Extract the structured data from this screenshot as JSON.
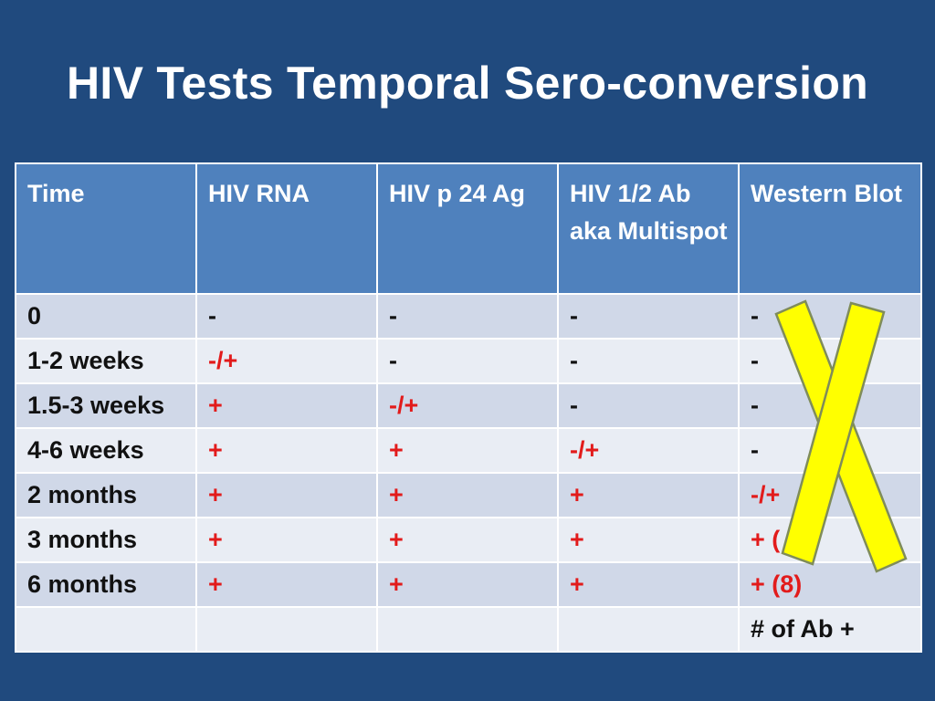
{
  "slide": {
    "title": "HIV Tests Temporal Sero-conversion"
  },
  "table": {
    "headers": [
      "Time",
      "HIV RNA",
      "HIV p 24 Ag",
      "HIV 1/2 Ab aka Multispot",
      "Western Blot"
    ],
    "rows": [
      [
        "0",
        "-",
        "-",
        "-",
        "-"
      ],
      [
        "1-2 weeks",
        "-/+",
        "-",
        "-",
        "-"
      ],
      [
        "1.5-3 weeks",
        "+",
        "-/+",
        "-",
        "-"
      ],
      [
        "4-6 weeks",
        "+",
        "+",
        "-/+",
        "-"
      ],
      [
        "2 months",
        "+",
        "+",
        "+",
        "-/+"
      ],
      [
        "3 months",
        "+",
        "+",
        "+",
        "+ ("
      ],
      [
        "6 months",
        "+",
        "+",
        "+",
        "+ (8)"
      ],
      [
        "",
        "",
        "",
        "",
        "# of Ab +"
      ]
    ]
  },
  "colors": {
    "background": "#204a7e",
    "header": "#4f81bd",
    "row_dark": "#d0d8e8",
    "row_light": "#e9edf4",
    "positive_text": "#e21b1b",
    "x_mark": "#ffff00"
  },
  "overlay": {
    "icon": "yellow-x-mark-icon"
  }
}
